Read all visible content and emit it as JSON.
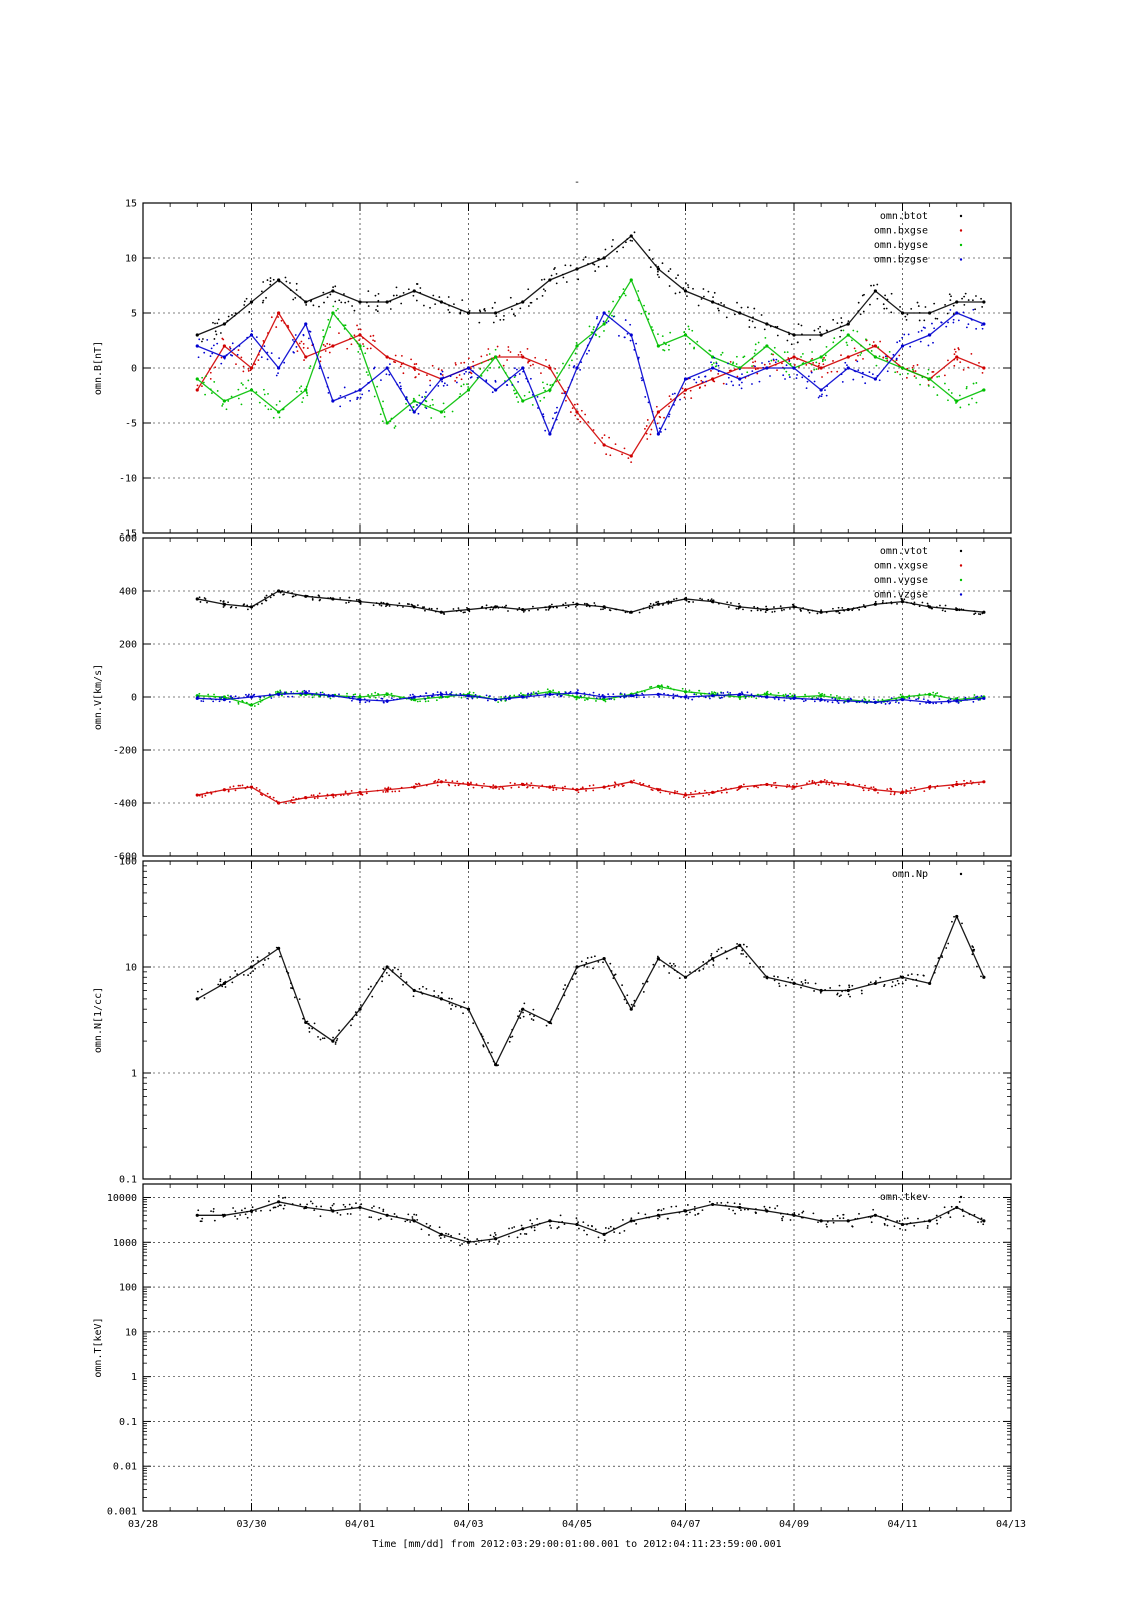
{
  "title_mark": "-",
  "chart_data": [
    {
      "type": "scatter",
      "ylabel": "omn.B[nT]",
      "ylim": [
        -15,
        15
      ],
      "scale": "linear",
      "yticks": [
        -15,
        -10,
        -5,
        0,
        5,
        10,
        15
      ],
      "ytick_labels": [
        "-15",
        "-10",
        "-5",
        "0",
        "5",
        "10",
        "15"
      ],
      "grid": true,
      "legend_position": "top-right",
      "x_shared": true,
      "series": [
        {
          "name": "omn.btot",
          "color": "#000000",
          "x": [
            29.0,
            29.5,
            30.0,
            30.5,
            31.0,
            31.5,
            32.0,
            32.5,
            33.0,
            33.5,
            34.0,
            34.5,
            35.0,
            35.5,
            36.0,
            36.5,
            37.0,
            37.5,
            38.0,
            38.5,
            39.0,
            39.5,
            40.0,
            40.5,
            41.0,
            41.5,
            42.0,
            42.5,
            43.0,
            43.5
          ],
          "y": [
            3,
            4,
            6,
            8,
            6,
            7,
            6,
            6,
            7,
            6,
            5,
            5,
            6,
            8,
            9,
            10,
            12,
            9,
            7,
            6,
            5,
            4,
            3,
            3,
            4,
            7,
            5,
            5,
            6,
            6
          ]
        },
        {
          "name": "omn.bxgse",
          "color": "#d00000",
          "x": [
            29.0,
            29.5,
            30.0,
            30.5,
            31.0,
            31.5,
            32.0,
            32.5,
            33.0,
            33.5,
            34.0,
            34.5,
            35.0,
            35.5,
            36.0,
            36.5,
            37.0,
            37.5,
            38.0,
            38.5,
            39.0,
            39.5,
            40.0,
            40.5,
            41.0,
            41.5,
            42.0,
            42.5,
            43.0,
            43.5
          ],
          "y": [
            -2,
            2,
            0,
            5,
            1,
            2,
            3,
            1,
            0,
            -1,
            0,
            1,
            1,
            0,
            -4,
            -7,
            -8,
            -4,
            -2,
            -1,
            0,
            0,
            1,
            0,
            1,
            2,
            0,
            -1,
            1,
            0
          ]
        },
        {
          "name": "omn.bygse",
          "color": "#00c000",
          "x": [
            29.0,
            29.5,
            30.0,
            30.5,
            31.0,
            31.5,
            32.0,
            32.5,
            33.0,
            33.5,
            34.0,
            34.5,
            35.0,
            35.5,
            36.0,
            36.5,
            37.0,
            37.5,
            38.0,
            38.5,
            39.0,
            39.5,
            40.0,
            40.5,
            41.0,
            41.5,
            42.0,
            42.5,
            43.0,
            43.5
          ],
          "y": [
            -1,
            -3,
            -2,
            -4,
            -2,
            5,
            2,
            -5,
            -3,
            -4,
            -2,
            1,
            -3,
            -2,
            2,
            4,
            8,
            2,
            3,
            1,
            0,
            2,
            0,
            1,
            3,
            1,
            0,
            -1,
            -3,
            -2
          ]
        },
        {
          "name": "omn.bzgse",
          "color": "#0000d0",
          "x": [
            29.0,
            29.5,
            30.0,
            30.5,
            31.0,
            31.5,
            32.0,
            32.5,
            33.0,
            33.5,
            34.0,
            34.5,
            35.0,
            35.5,
            36.0,
            36.5,
            37.0,
            37.5,
            38.0,
            38.5,
            39.0,
            39.5,
            40.0,
            40.5,
            41.0,
            41.5,
            42.0,
            42.5,
            43.0,
            43.5
          ],
          "y": [
            2,
            1,
            3,
            0,
            4,
            -3,
            -2,
            0,
            -4,
            -1,
            0,
            -2,
            0,
            -6,
            0,
            5,
            3,
            -6,
            -1,
            0,
            -1,
            0,
            0,
            -2,
            0,
            -1,
            2,
            3,
            5,
            4
          ]
        }
      ]
    },
    {
      "type": "scatter",
      "ylabel": "omn.V[km/s]",
      "ylim": [
        -600,
        600
      ],
      "scale": "linear",
      "yticks": [
        -600,
        -400,
        -200,
        0,
        200,
        400,
        600
      ],
      "ytick_labels": [
        "-600",
        "-400",
        "-200",
        "0",
        "200",
        "400",
        "600"
      ],
      "grid": true,
      "legend_position": "top-right",
      "x_shared": true,
      "series": [
        {
          "name": "omn.vtot",
          "color": "#000000",
          "x": [
            29.0,
            29.5,
            30.0,
            30.5,
            31.0,
            31.5,
            32.0,
            32.5,
            33.0,
            33.5,
            34.0,
            34.5,
            35.0,
            35.5,
            36.0,
            36.5,
            37.0,
            37.5,
            38.0,
            38.5,
            39.0,
            39.5,
            40.0,
            40.5,
            41.0,
            41.5,
            42.0,
            42.5,
            43.0,
            43.5
          ],
          "y": [
            370,
            350,
            340,
            400,
            380,
            370,
            360,
            350,
            340,
            320,
            330,
            340,
            330,
            340,
            350,
            340,
            320,
            350,
            370,
            360,
            340,
            330,
            340,
            320,
            330,
            350,
            360,
            340,
            330,
            320
          ]
        },
        {
          "name": "omn.vxgse",
          "color": "#d00000",
          "x": [
            29.0,
            29.5,
            30.0,
            30.5,
            31.0,
            31.5,
            32.0,
            32.5,
            33.0,
            33.5,
            34.0,
            34.5,
            35.0,
            35.5,
            36.0,
            36.5,
            37.0,
            37.5,
            38.0,
            38.5,
            39.0,
            39.5,
            40.0,
            40.5,
            41.0,
            41.5,
            42.0,
            42.5,
            43.0,
            43.5
          ],
          "y": [
            -370,
            -350,
            -340,
            -400,
            -380,
            -370,
            -360,
            -350,
            -340,
            -320,
            -330,
            -340,
            -330,
            -340,
            -350,
            -340,
            -320,
            -350,
            -370,
            -360,
            -340,
            -330,
            -340,
            -320,
            -330,
            -350,
            -360,
            -340,
            -330,
            -320
          ]
        },
        {
          "name": "omn.vygse",
          "color": "#00c000",
          "x": [
            29.0,
            29.5,
            30.0,
            30.5,
            31.0,
            31.5,
            32.0,
            32.5,
            33.0,
            33.5,
            34.0,
            34.5,
            35.0,
            35.5,
            36.0,
            36.5,
            37.0,
            37.5,
            38.0,
            38.5,
            39.0,
            39.5,
            40.0,
            40.5,
            41.0,
            41.5,
            42.0,
            42.5,
            43.0,
            43.5
          ],
          "y": [
            5,
            0,
            -30,
            15,
            10,
            5,
            0,
            10,
            -10,
            0,
            10,
            -10,
            5,
            20,
            0,
            -10,
            10,
            40,
            20,
            10,
            0,
            10,
            0,
            5,
            -10,
            -20,
            0,
            10,
            -10,
            0
          ]
        },
        {
          "name": "omn.vzgse",
          "color": "#0000d0",
          "x": [
            29.0,
            29.5,
            30.0,
            30.5,
            31.0,
            31.5,
            32.0,
            32.5,
            33.0,
            33.5,
            34.0,
            34.5,
            35.0,
            35.5,
            36.0,
            36.5,
            37.0,
            37.5,
            38.0,
            38.5,
            39.0,
            39.5,
            40.0,
            40.5,
            41.0,
            41.5,
            42.0,
            42.5,
            43.0,
            43.5
          ],
          "y": [
            -5,
            -10,
            0,
            10,
            15,
            5,
            -10,
            -15,
            0,
            10,
            5,
            -10,
            0,
            10,
            15,
            0,
            5,
            10,
            0,
            5,
            10,
            0,
            -5,
            -10,
            -15,
            -20,
            -10,
            -20,
            -15,
            -5
          ]
        }
      ]
    },
    {
      "type": "scatter",
      "ylabel": "omn.N[1/cc]",
      "ylim": [
        0.1,
        100
      ],
      "scale": "log",
      "yticks": [
        0.1,
        1,
        10,
        100
      ],
      "ytick_labels": [
        "0.1",
        "1",
        "10",
        "100"
      ],
      "grid": true,
      "legend_position": "top-right",
      "x_shared": true,
      "series": [
        {
          "name": "omn.Np",
          "color": "#000000",
          "x": [
            29.0,
            29.5,
            30.0,
            30.5,
            31.0,
            31.5,
            32.0,
            32.5,
            33.0,
            33.5,
            34.0,
            34.5,
            35.0,
            35.5,
            36.0,
            36.5,
            37.0,
            37.5,
            38.0,
            38.5,
            39.0,
            39.5,
            40.0,
            40.5,
            41.0,
            41.5,
            42.0,
            42.5,
            43.0,
            43.5
          ],
          "y": [
            5,
            7,
            10,
            15,
            3,
            2,
            4,
            10,
            6,
            5,
            4,
            1.2,
            4,
            3,
            10,
            12,
            4,
            12,
            8,
            12,
            16,
            8,
            7,
            6,
            6,
            7,
            8,
            7,
            30,
            8
          ]
        }
      ]
    },
    {
      "type": "scatter",
      "ylabel": "omn.T[keV]",
      "ylim": [
        0.001,
        20000
      ],
      "scale": "log",
      "yticks": [
        0.001,
        0.01,
        0.1,
        1,
        10,
        100,
        1000,
        10000
      ],
      "ytick_labels": [
        "0.001",
        "0.01",
        "0.1",
        "1",
        "10",
        "100",
        "1000",
        "10000"
      ],
      "grid": true,
      "legend_position": "top-right",
      "x_shared": true,
      "series": [
        {
          "name": "omn.tkev",
          "color": "#000000",
          "x": [
            29.0,
            29.5,
            30.0,
            30.5,
            31.0,
            31.5,
            32.0,
            32.5,
            33.0,
            33.5,
            34.0,
            34.5,
            35.0,
            35.5,
            36.0,
            36.5,
            37.0,
            37.5,
            38.0,
            38.5,
            39.0,
            39.5,
            40.0,
            40.5,
            41.0,
            41.5,
            42.0,
            42.5,
            43.0,
            43.5
          ],
          "y": [
            4000,
            4000,
            5000,
            8000,
            6000,
            5000,
            6000,
            4000,
            3000,
            1500,
            1000,
            1200,
            2000,
            3000,
            2500,
            1500,
            3000,
            4000,
            5000,
            7000,
            6000,
            5000,
            4000,
            3000,
            3000,
            4000,
            2500,
            3000,
            6000,
            3000
          ]
        }
      ]
    }
  ],
  "x_axis": {
    "xlim": [
      28,
      44
    ],
    "xticks": [
      28,
      30,
      32,
      34,
      36,
      38,
      40,
      42,
      44
    ],
    "xtick_labels": [
      "03/28",
      "03/30",
      "04/01",
      "04/03",
      "04/05",
      "04/07",
      "04/09",
      "04/11",
      "04/13"
    ],
    "xlabel": "Time [mm/dd]  from 2012:03:29:00:01:00.001  to  2012:04:11:23:59:00.001"
  }
}
